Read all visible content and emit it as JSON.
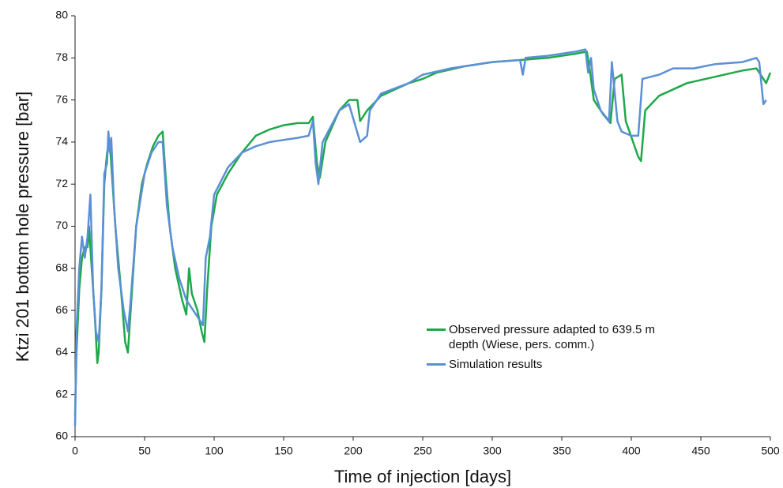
{
  "chart_data": {
    "type": "line",
    "xlabel": "Time of injection [days]",
    "ylabel": "Ktzi 201 bottom hole pressure [bar]",
    "xlim": [
      0,
      500
    ],
    "xticks": [
      0,
      50,
      100,
      150,
      200,
      250,
      300,
      350,
      400,
      450,
      500
    ],
    "ylim": [
      60,
      80
    ],
    "yticks": [
      60,
      62,
      64,
      66,
      68,
      70,
      72,
      74,
      76,
      78,
      80
    ],
    "grid": false,
    "series": [
      {
        "name": "Observed pressure adapted to 639.5 m depth (Wiese, pers. comm.)",
        "color": "#1ea84a",
        "x": [
          0,
          1,
          3,
          5,
          7,
          9,
          10,
          12,
          14,
          16,
          17,
          19,
          21,
          23,
          25,
          27,
          29,
          33,
          36,
          38,
          40,
          44,
          48,
          52,
          56,
          60,
          63,
          65,
          68,
          72,
          77,
          80,
          82,
          84,
          88,
          91,
          93,
          95,
          98,
          102,
          110,
          120,
          130,
          140,
          150,
          160,
          168,
          171,
          174,
          176,
          180,
          190,
          197,
          203,
          205,
          210,
          220,
          240,
          250,
          260,
          280,
          300,
          320,
          340,
          360,
          368,
          370,
          373,
          380,
          385,
          388,
          393,
          396,
          405,
          407,
          410,
          420,
          440,
          460,
          480,
          490,
          495,
          497,
          500
        ],
        "values": [
          61,
          64,
          67,
          68.5,
          69,
          69,
          70,
          68,
          66,
          63.5,
          64,
          67,
          72,
          73.5,
          74,
          72,
          70,
          67,
          64.5,
          64,
          66,
          70,
          72,
          73,
          73.8,
          74.3,
          74.5,
          72.5,
          70,
          68,
          66.5,
          65.8,
          68,
          66.8,
          66,
          65,
          64.5,
          67,
          70,
          71.5,
          72.5,
          73.5,
          74.3,
          74.6,
          74.8,
          74.9,
          74.9,
          75.2,
          73,
          72.3,
          74,
          75.5,
          76,
          76,
          75,
          75.5,
          76.2,
          76.8,
          77,
          77.3,
          77.6,
          77.8,
          77.9,
          78,
          78.2,
          78.3,
          77.5,
          76,
          75.3,
          74.9,
          77,
          77.2,
          75,
          73.3,
          73.1,
          75.5,
          76.2,
          76.8,
          77.1,
          77.4,
          77.5,
          77,
          76.8,
          77.3
        ]
      },
      {
        "name": "Simulation results",
        "color": "#5b8fd6",
        "x": [
          0,
          1,
          3,
          5,
          7,
          9,
          11,
          13,
          15,
          17,
          19,
          21,
          23,
          24,
          25,
          26,
          28,
          31,
          35,
          38,
          40,
          44,
          50,
          55,
          60,
          63,
          66,
          70,
          75,
          80,
          85,
          90,
          92,
          94,
          97,
          100,
          110,
          120,
          130,
          140,
          150,
          160,
          168,
          171,
          173,
          175,
          178,
          190,
          197,
          205,
          210,
          212,
          220,
          240,
          250,
          270,
          300,
          320,
          322,
          324,
          340,
          360,
          367,
          369,
          371,
          373,
          378,
          384,
          386,
          390,
          393,
          400,
          405,
          408,
          420,
          430,
          445,
          460,
          480,
          490,
          492,
          495,
          497
        ],
        "values": [
          60.5,
          65,
          68,
          69.5,
          68.5,
          69.5,
          71.5,
          67,
          65,
          64.5,
          67,
          72.5,
          73,
          74.5,
          73.5,
          74.2,
          71,
          68,
          66,
          65,
          66.5,
          70,
          72.5,
          73.5,
          74,
          74,
          71,
          69,
          67.5,
          66.5,
          66,
          65.5,
          65.3,
          68.5,
          69.5,
          71.5,
          72.8,
          73.5,
          73.8,
          74,
          74.1,
          74.2,
          74.3,
          75,
          73,
          72,
          74,
          75.5,
          75.8,
          74,
          74.3,
          75.5,
          76.3,
          76.8,
          77.2,
          77.5,
          77.8,
          77.9,
          77.2,
          78,
          78.1,
          78.3,
          78.4,
          77.3,
          78,
          76.5,
          75.5,
          75,
          77.8,
          75,
          74.5,
          74.3,
          74.3,
          77,
          77.2,
          77.5,
          77.5,
          77.7,
          77.8,
          78,
          77.8,
          75.8,
          76
        ]
      }
    ]
  }
}
